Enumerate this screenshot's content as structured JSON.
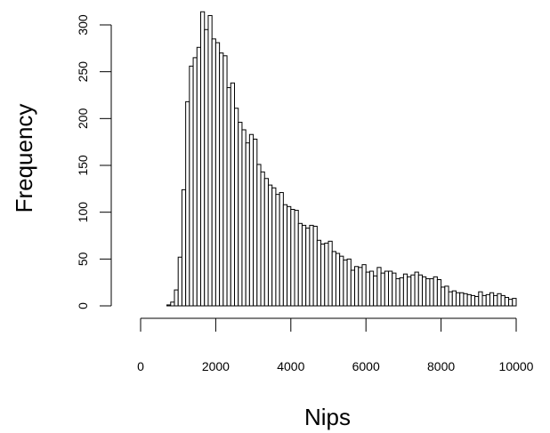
{
  "chart_data": {
    "type": "bar",
    "title": "",
    "xlabel": "Nips",
    "ylabel": "Frequency",
    "bin_width": 100,
    "x_start": 0,
    "xlim": [
      0,
      10000
    ],
    "ylim": [
      0,
      300
    ],
    "x_ticks": [
      0,
      2000,
      4000,
      6000,
      8000,
      10000
    ],
    "x_tick_labels": [
      "0",
      "2000",
      "4000",
      "6000",
      "8000",
      "10000"
    ],
    "y_ticks": [
      0,
      50,
      100,
      150,
      200,
      250,
      300
    ],
    "y_tick_labels": [
      "0",
      "50",
      "100",
      "150",
      "200",
      "250",
      "300"
    ],
    "grid": false,
    "legend": "none",
    "bar_fill": "#ffffff",
    "bar_stroke": "#000000",
    "values": [
      0,
      0,
      0,
      0,
      0,
      0,
      0,
      1,
      4,
      17,
      52,
      124,
      218,
      256,
      265,
      276,
      314,
      295,
      310,
      285,
      281,
      270,
      267,
      233,
      238,
      211,
      196,
      188,
      174,
      183,
      178,
      151,
      143,
      136,
      129,
      126,
      119,
      121,
      108,
      106,
      103,
      102,
      88,
      86,
      83,
      86,
      85,
      70,
      66,
      67,
      69,
      58,
      56,
      53,
      49,
      50,
      38,
      42,
      41,
      44,
      36,
      37,
      32,
      41,
      35,
      37,
      37,
      35,
      29,
      30,
      34,
      31,
      33,
      36,
      33,
      31,
      29,
      29,
      31,
      28,
      20,
      21,
      15,
      16,
      14,
      14,
      13,
      12,
      11,
      10,
      15,
      11,
      12,
      14,
      11,
      13,
      11,
      9,
      7,
      8
    ]
  }
}
